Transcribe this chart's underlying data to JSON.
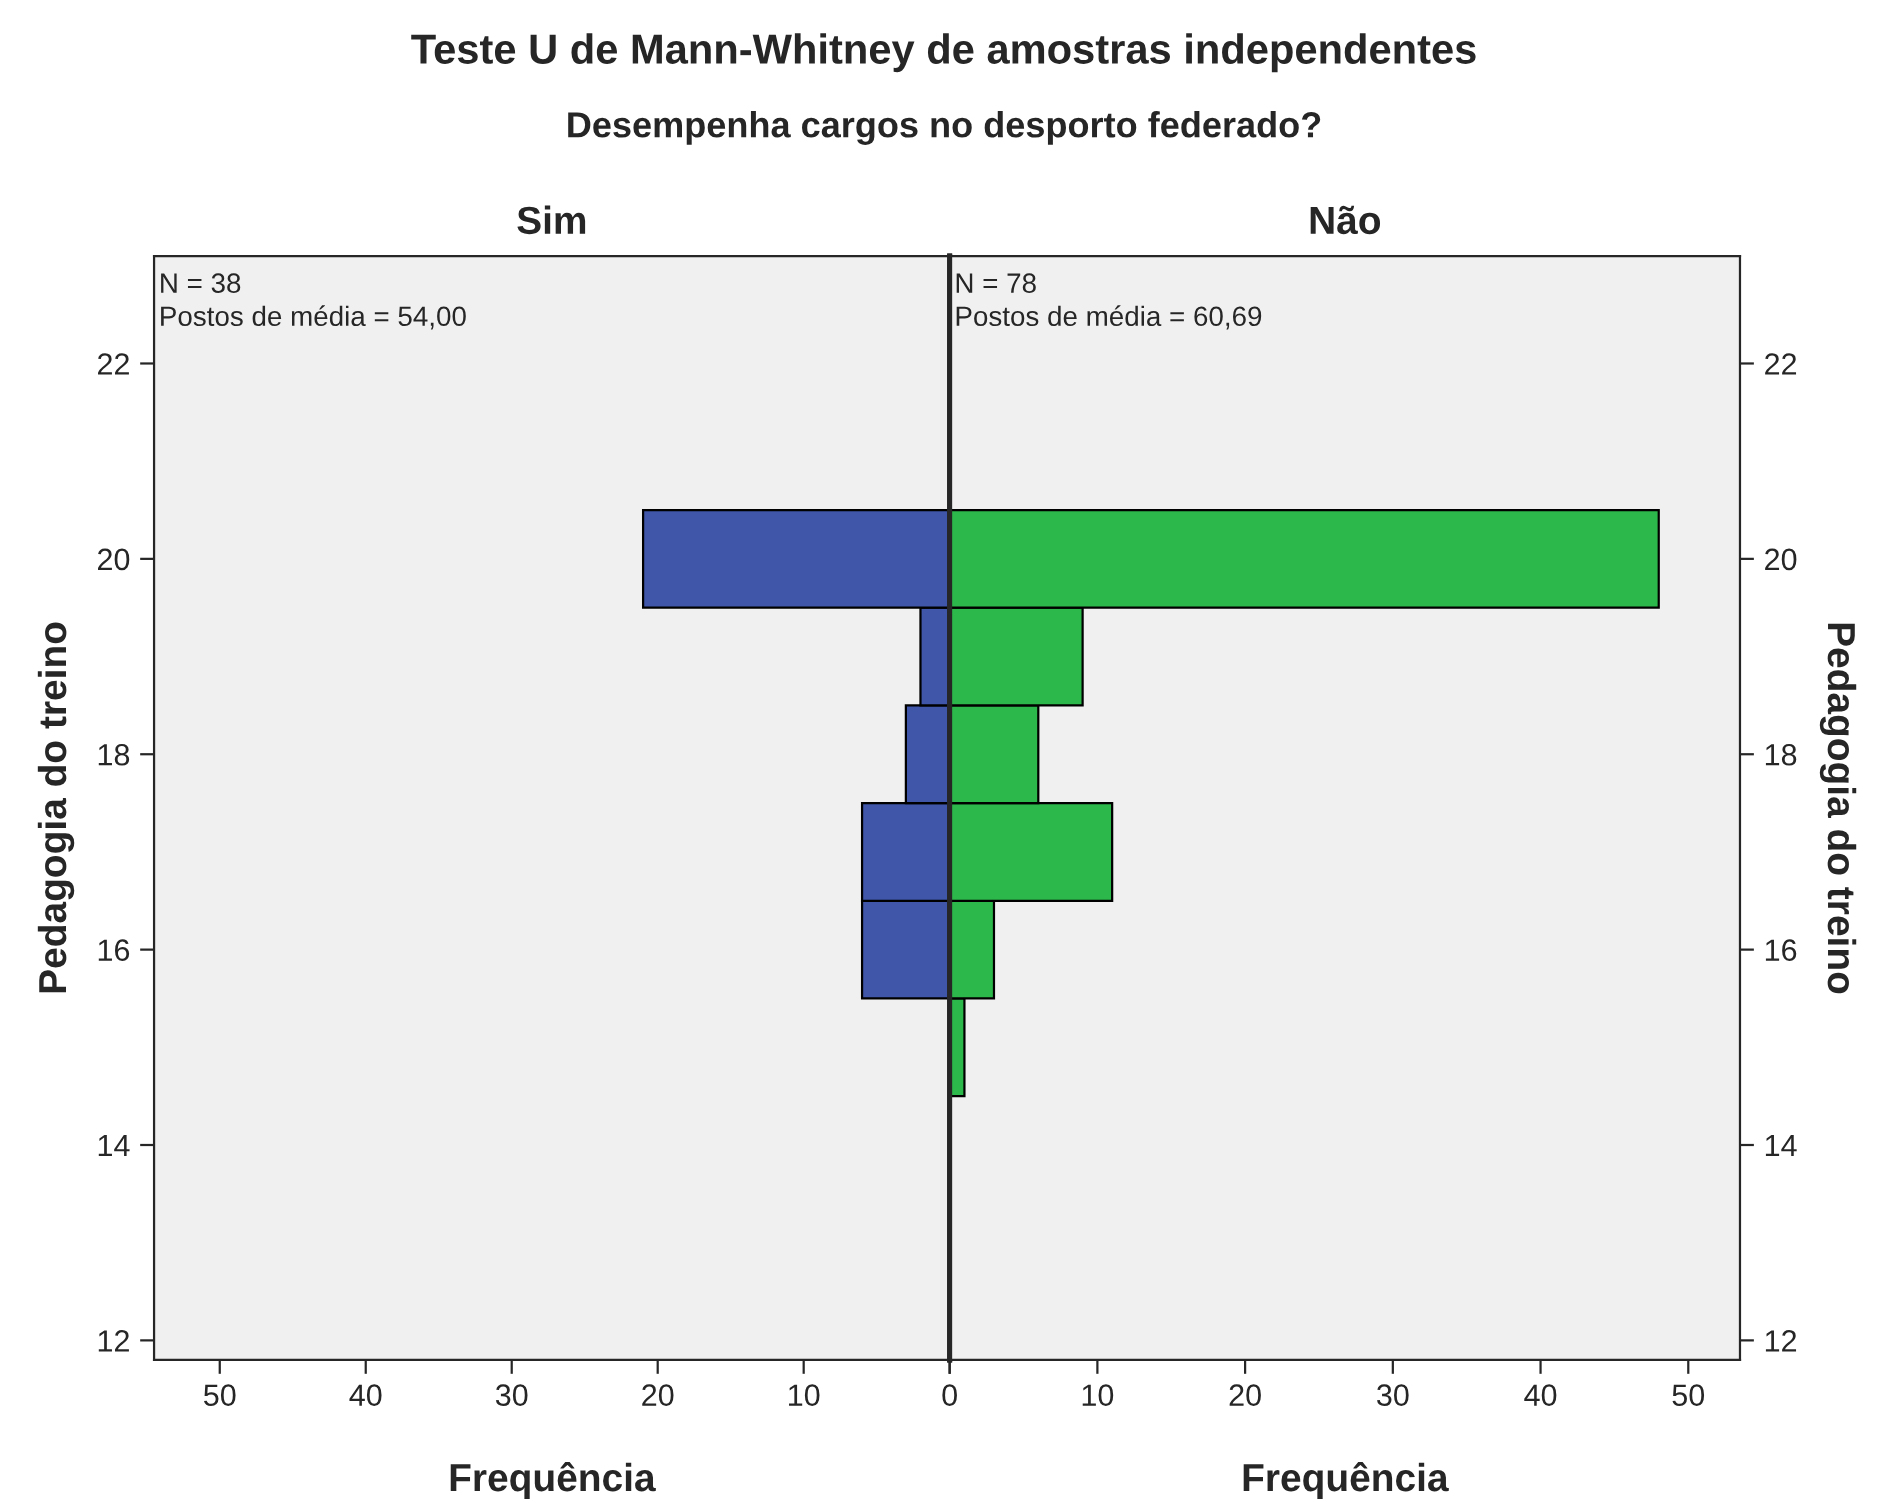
{
  "chart_data": [
    {
      "type": "other",
      "title": "Teste U de Mann-Whitney de amostras independentes",
      "subtitle": "Desempenha cargos no desporto federado?"
    },
    {
      "type": "histogram",
      "orientation": "horizontal",
      "title": "Sim",
      "xlabel": "Frequência",
      "ylabel": "Pedagogia do treino",
      "color": "#3f56a9",
      "bins": [
        15.5,
        16.5,
        17.5,
        18.5,
        19.5,
        20.5
      ],
      "values": [
        6,
        6,
        3,
        2,
        21
      ],
      "xlim": [
        54.5,
        0
      ],
      "xticks": [
        50,
        40,
        30,
        20,
        10,
        0
      ],
      "ylim": [
        11.8,
        23.1
      ],
      "yticks": [
        12,
        14,
        16,
        18,
        20,
        22
      ],
      "annotations": [
        "N = 38",
        "Postos de média = 54,00"
      ]
    },
    {
      "type": "histogram",
      "orientation": "horizontal",
      "title": "Não",
      "xlabel": "Frequência",
      "ylabel": "Pedagogia do treino",
      "color": "#2db84b",
      "bins": [
        14.5,
        15.5,
        16.5,
        17.5,
        18.5,
        19.5,
        20.5
      ],
      "values": [
        1,
        3,
        11,
        6,
        9,
        48
      ],
      "xlim": [
        0,
        53.5
      ],
      "xticks": [
        {
          "value": 0,
          "label": null
        },
        10,
        20,
        30,
        40,
        50
      ],
      "ylim": [
        11.8,
        23.1
      ],
      "yticks": [
        12,
        14,
        16,
        18,
        20,
        22
      ],
      "annotations": [
        "N = 78",
        "Postos de média = 60,69"
      ]
    }
  ]
}
